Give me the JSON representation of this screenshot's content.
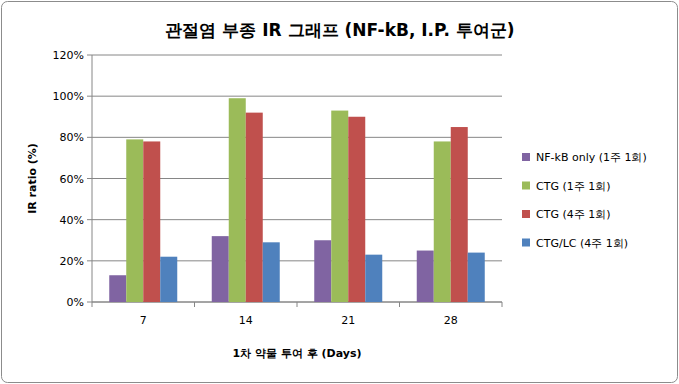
{
  "chart_data": {
    "type": "bar",
    "title": "관절염 부종 IR 그래프 (NF-kB, I.P. 투여군)",
    "x_label": "1차 약물 투여 후 (Days)",
    "y_label": "IR ratio (%)",
    "categories": [
      "7",
      "14",
      "21",
      "28"
    ],
    "series": [
      {
        "name": "NF-kB only (1주 1회)",
        "color": "#8064a2",
        "values": [
          13,
          32,
          30,
          25
        ]
      },
      {
        "name": "CTG (1주 1회)",
        "color": "#9bbb59",
        "values": [
          79,
          99,
          93,
          78
        ]
      },
      {
        "name": "CTG (4주 1회)",
        "color": "#c0504d",
        "values": [
          78,
          92,
          90,
          85
        ]
      },
      {
        "name": "CTG/LC (4주 1회)",
        "color": "#4f81bd",
        "values": [
          22,
          29,
          23,
          24
        ]
      }
    ],
    "ylim": [
      0,
      120
    ],
    "yticks": [
      {
        "value": 0,
        "label": "0%"
      },
      {
        "value": 20,
        "label": "20%"
      },
      {
        "value": 40,
        "label": "40%"
      },
      {
        "value": 60,
        "label": "60%"
      },
      {
        "value": 80,
        "label": "80%"
      },
      {
        "value": 100,
        "label": "100%"
      },
      {
        "value": 120,
        "label": "120%"
      }
    ],
    "grid": true,
    "legend": "right"
  }
}
